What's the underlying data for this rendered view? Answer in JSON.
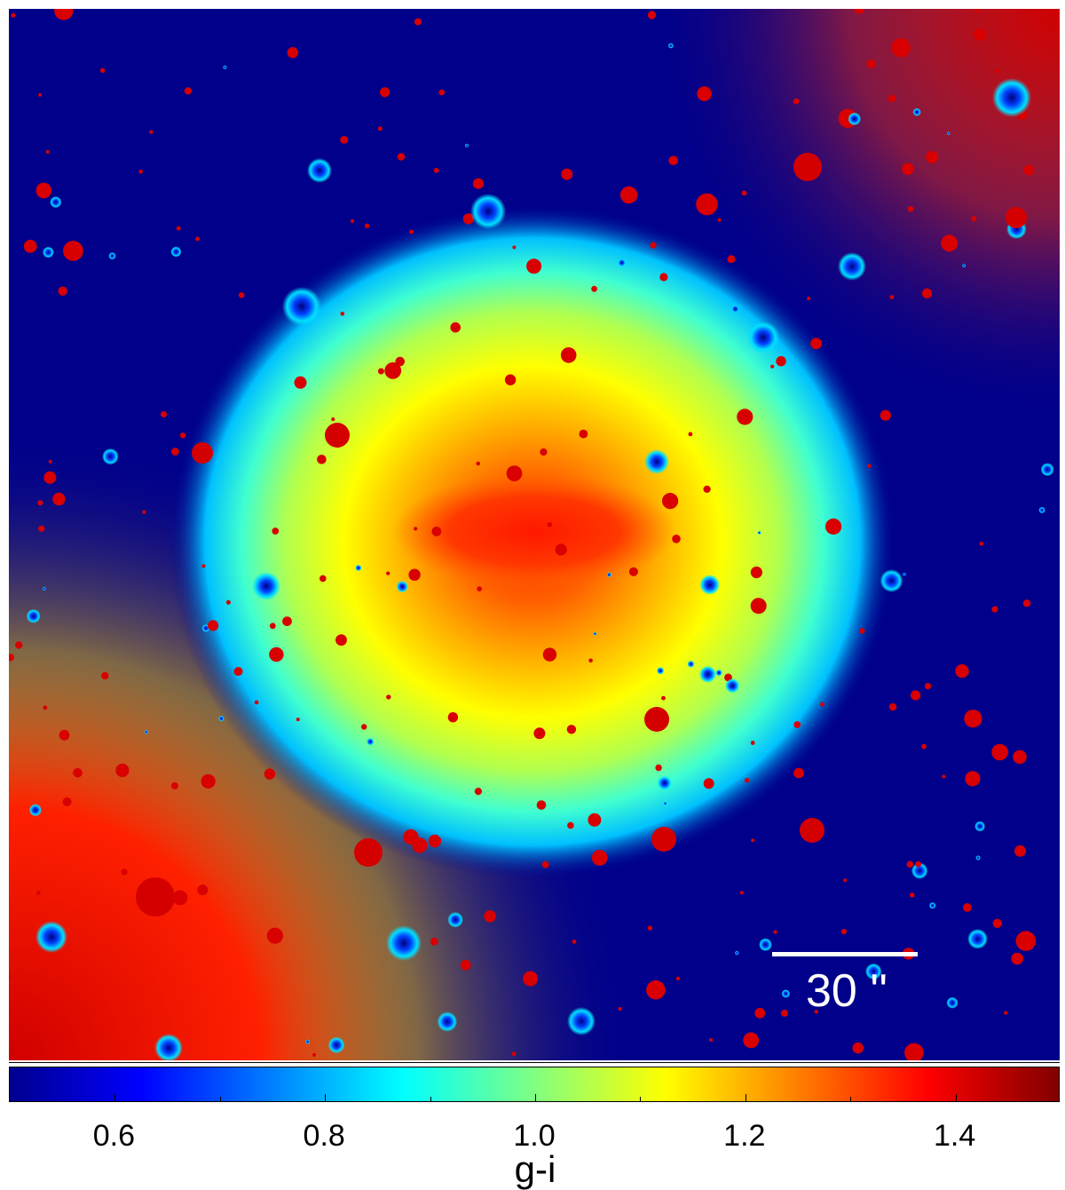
{
  "image": {
    "description_colors": {
      "background": "#00008b",
      "halo_outer": "#00e0ff",
      "halo_mid": "#ffff00",
      "core": "#ff4000",
      "hot_spots": "#d40000"
    }
  },
  "scale_bar": {
    "label": "30 ''"
  },
  "colorbar": {
    "title": "g-i",
    "min": 0.5,
    "max": 1.5,
    "ticks": [
      {
        "value": 0.6,
        "label": "0.6"
      },
      {
        "value": 0.8,
        "label": "0.8"
      },
      {
        "value": 1.0,
        "label": "1.0"
      },
      {
        "value": 1.2,
        "label": "1.2"
      },
      {
        "value": 1.4,
        "label": "1.4"
      }
    ],
    "minor_ticks": [
      0.7,
      0.9,
      1.1,
      1.3
    ]
  }
}
